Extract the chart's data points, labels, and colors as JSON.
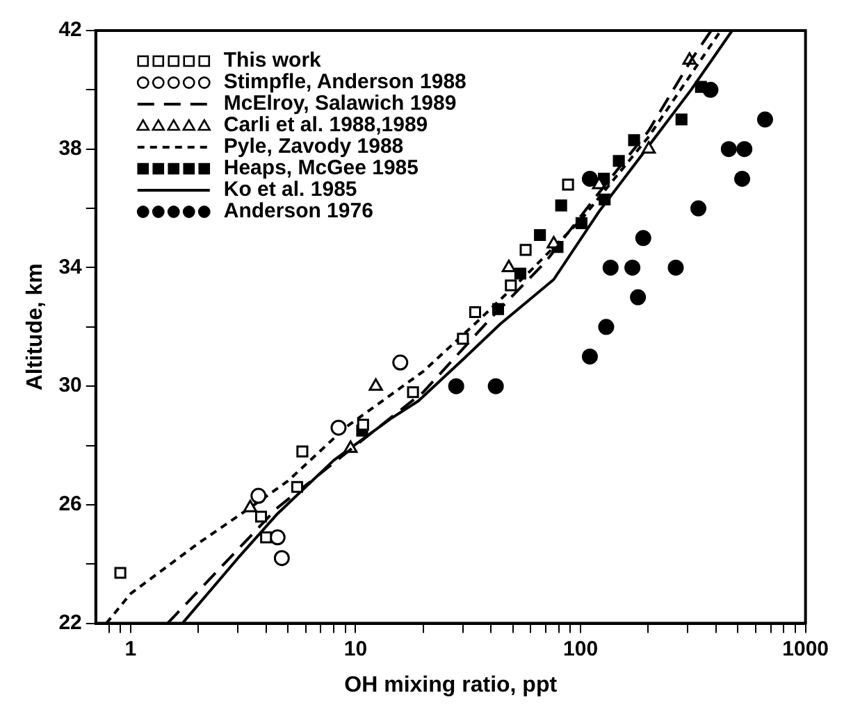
{
  "chart_data": {
    "type": "scatter",
    "xlabel": "OH mixing ratio, ppt",
    "ylabel": "Altitude, km",
    "log": "x",
    "grid": false,
    "legend": "top left",
    "xlim": [
      0.7,
      1000
    ],
    "ylim": [
      22,
      42
    ],
    "xticks": [
      {
        "value": 0.8,
        "label": null
      },
      {
        "value": 0.9,
        "label": null
      },
      1,
      {
        "value": 2,
        "label": null
      },
      {
        "value": 3,
        "label": null
      },
      {
        "value": 4,
        "label": null
      },
      {
        "value": 5,
        "label": null
      },
      {
        "value": 6,
        "label": null
      },
      {
        "value": 7,
        "label": null
      },
      {
        "value": 8,
        "label": null
      },
      {
        "value": 9,
        "label": null
      },
      10,
      {
        "value": 20,
        "label": null
      },
      {
        "value": 30,
        "label": null
      },
      {
        "value": 40,
        "label": null
      },
      {
        "value": 50,
        "label": null
      },
      {
        "value": 60,
        "label": null
      },
      {
        "value": 70,
        "label": null
      },
      {
        "value": 80,
        "label": null
      },
      {
        "value": 90,
        "label": null
      },
      100,
      {
        "value": 200,
        "label": null
      },
      {
        "value": 300,
        "label": null
      },
      {
        "value": 400,
        "label": null
      },
      {
        "value": 500,
        "label": null
      },
      {
        "value": 600,
        "label": null
      },
      {
        "value": 700,
        "label": null
      },
      {
        "value": 800,
        "label": null
      },
      {
        "value": 900,
        "label": null
      },
      1000
    ],
    "yticks": [
      22,
      {
        "value": 24,
        "label": null
      },
      26,
      {
        "value": 28,
        "label": null
      },
      30,
      {
        "value": 32,
        "label": null
      },
      34,
      {
        "value": 36,
        "label": null
      },
      38,
      {
        "value": 40,
        "label": null
      },
      42
    ],
    "series": [
      {
        "name": "This work",
        "type": "scatter",
        "marker": "square",
        "color": "#000000",
        "x": [
          0.9,
          3.8,
          4.0,
          5.5,
          5.8,
          10.8,
          18,
          30,
          34,
          49,
          57,
          88
        ],
        "values": [
          23.7,
          25.6,
          24.9,
          26.6,
          27.8,
          28.7,
          29.8,
          31.6,
          32.5,
          33.4,
          34.6,
          36.8
        ]
      },
      {
        "name": "Stimpfle, Anderson 1988",
        "type": "scatter",
        "marker": "circle",
        "color": "#000000",
        "x": [
          3.7,
          4.5,
          4.7,
          8.4,
          15.8
        ],
        "values": [
          26.3,
          24.9,
          24.2,
          28.6,
          30.8
        ]
      },
      {
        "name": "McElroy, Salawich 1989",
        "type": "line",
        "line_style": "dashed",
        "marker": "none",
        "color": "#000000",
        "x": [
          1.46,
          4.5,
          10,
          20,
          40,
          70,
          120,
          200,
          310,
          381
        ],
        "values": [
          22,
          25.9,
          28.0,
          29.8,
          32.3,
          34.2,
          36.5,
          38.6,
          41,
          42
        ]
      },
      {
        "name": "Carli et al. 1988,1989",
        "type": "scatter",
        "marker": "triangle",
        "color": "#000000",
        "x": [
          3.4,
          9.5,
          12.3,
          48,
          76,
          121,
          201,
          305
        ],
        "values": [
          25.9,
          27.9,
          30.0,
          34.0,
          34.8,
          36.8,
          38.0,
          41.0
        ]
      },
      {
        "name": "Pyle, Zavody 1988",
        "type": "line",
        "line_style": "dotted",
        "marker": "none",
        "color": "#000000",
        "x": [
          0.78,
          1,
          2,
          3.4,
          5,
          9,
          20,
          35,
          60,
          100,
          200,
          420
        ],
        "values": [
          22,
          23,
          24.7,
          25.9,
          26.8,
          28.6,
          30.5,
          32.2,
          33.9,
          35.6,
          38.4,
          42
        ]
      },
      {
        "name": "Heaps, McGee 1985",
        "type": "scatter",
        "marker": "square",
        "color": "#000000",
        "x": [
          10.7,
          43,
          54,
          66,
          79,
          82,
          101,
          127,
          128,
          148,
          173,
          281,
          343
        ],
        "values": [
          28.5,
          32.6,
          33.8,
          35.1,
          34.7,
          36.1,
          35.5,
          37.0,
          36.3,
          37.6,
          38.3,
          39.0,
          40.1
        ]
      },
      {
        "name": "Ko et al. 1985",
        "type": "line",
        "line_style": "solid",
        "marker": "none",
        "color": "#000000",
        "x": [
          1.7,
          3,
          4.5,
          8,
          14.3,
          19,
          30,
          44,
          76,
          121,
          196,
          310,
          472
        ],
        "values": [
          22,
          24.2,
          25.7,
          27.5,
          28.9,
          29.5,
          30.9,
          32.1,
          33.6,
          35.9,
          38,
          40,
          42
        ]
      },
      {
        "name": "Anderson 1976",
        "type": "scatter",
        "marker": "circle",
        "color": "#000000",
        "x": [
          28,
          42,
          110,
          130,
          110,
          136,
          170,
          265,
          180,
          190,
          334,
          456,
          535,
          523,
          661,
          378
        ],
        "values": [
          30,
          30,
          31,
          32,
          37,
          34,
          34,
          34,
          33,
          35,
          36,
          38,
          38,
          37,
          39,
          40
        ]
      }
    ]
  }
}
